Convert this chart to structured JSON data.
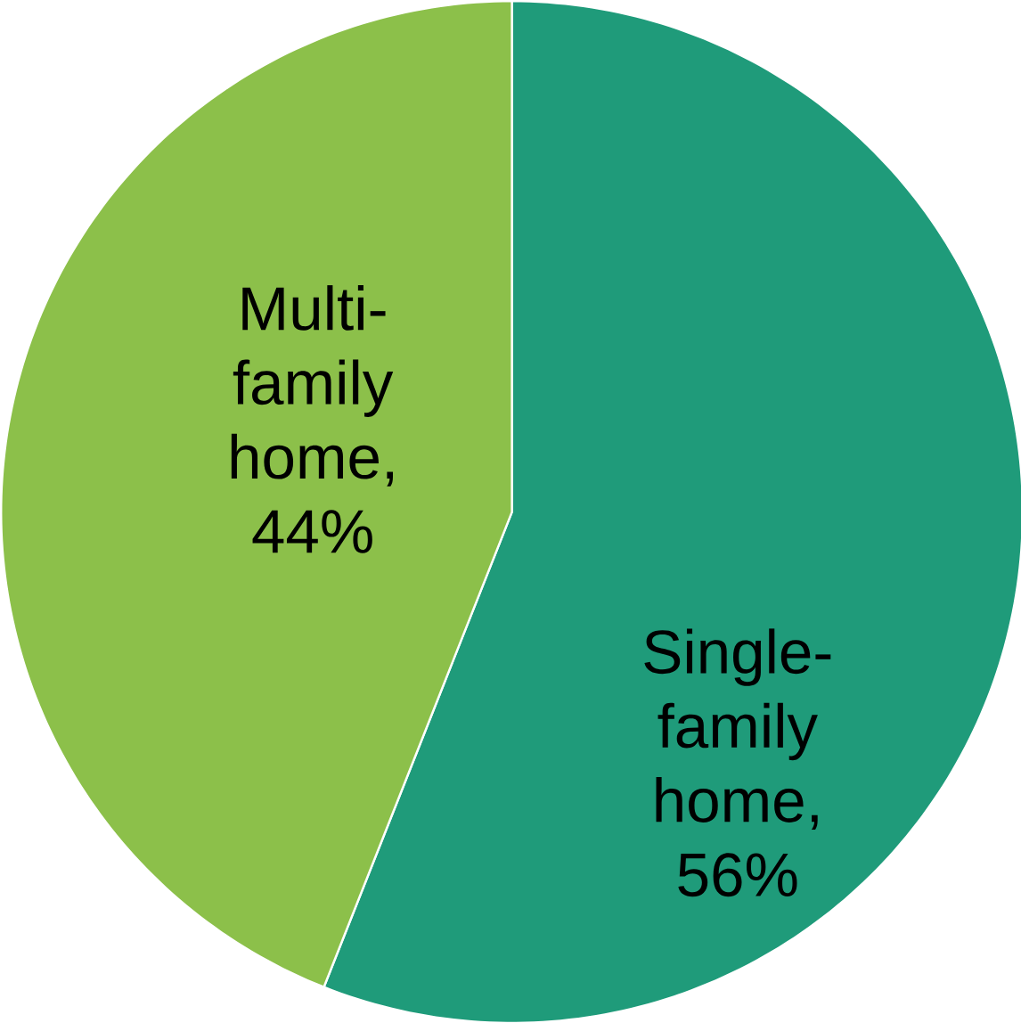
{
  "chart_data": {
    "type": "pie",
    "categories": [
      "Single-family home",
      "Multi-family home"
    ],
    "values": [
      56,
      44
    ],
    "value_labels": [
      ",\n56%",
      ",\n44%"
    ],
    "colors": [
      "#1f9b7a",
      "#8cc04a"
    ]
  }
}
